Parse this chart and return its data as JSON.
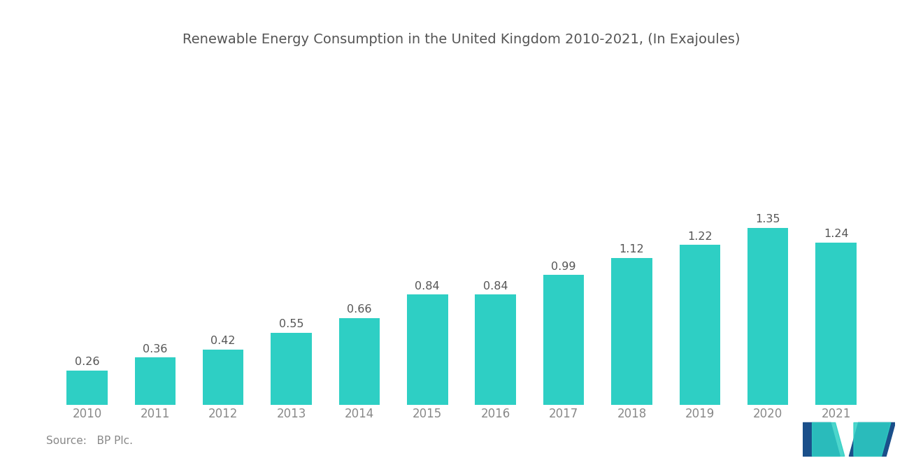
{
  "title": "Renewable Energy Consumption in the United Kingdom 2010-2021, (In Exajoules)",
  "categories": [
    "2010",
    "2011",
    "2012",
    "2013",
    "2014",
    "2015",
    "2016",
    "2017",
    "2018",
    "2019",
    "2020",
    "2021"
  ],
  "values": [
    0.26,
    0.36,
    0.42,
    0.55,
    0.66,
    0.84,
    0.84,
    0.99,
    1.12,
    1.22,
    1.35,
    1.24
  ],
  "bar_color": "#2ecfc4",
  "background_color": "#ffffff",
  "title_color": "#555555",
  "label_color": "#555555",
  "tick_color": "#888888",
  "source_text": "Source:   BP Plc.",
  "ylim": [
    0,
    1.6
  ],
  "bar_width": 0.6,
  "title_fontsize": 14,
  "label_fontsize": 11.5,
  "tick_fontsize": 12,
  "source_fontsize": 11
}
